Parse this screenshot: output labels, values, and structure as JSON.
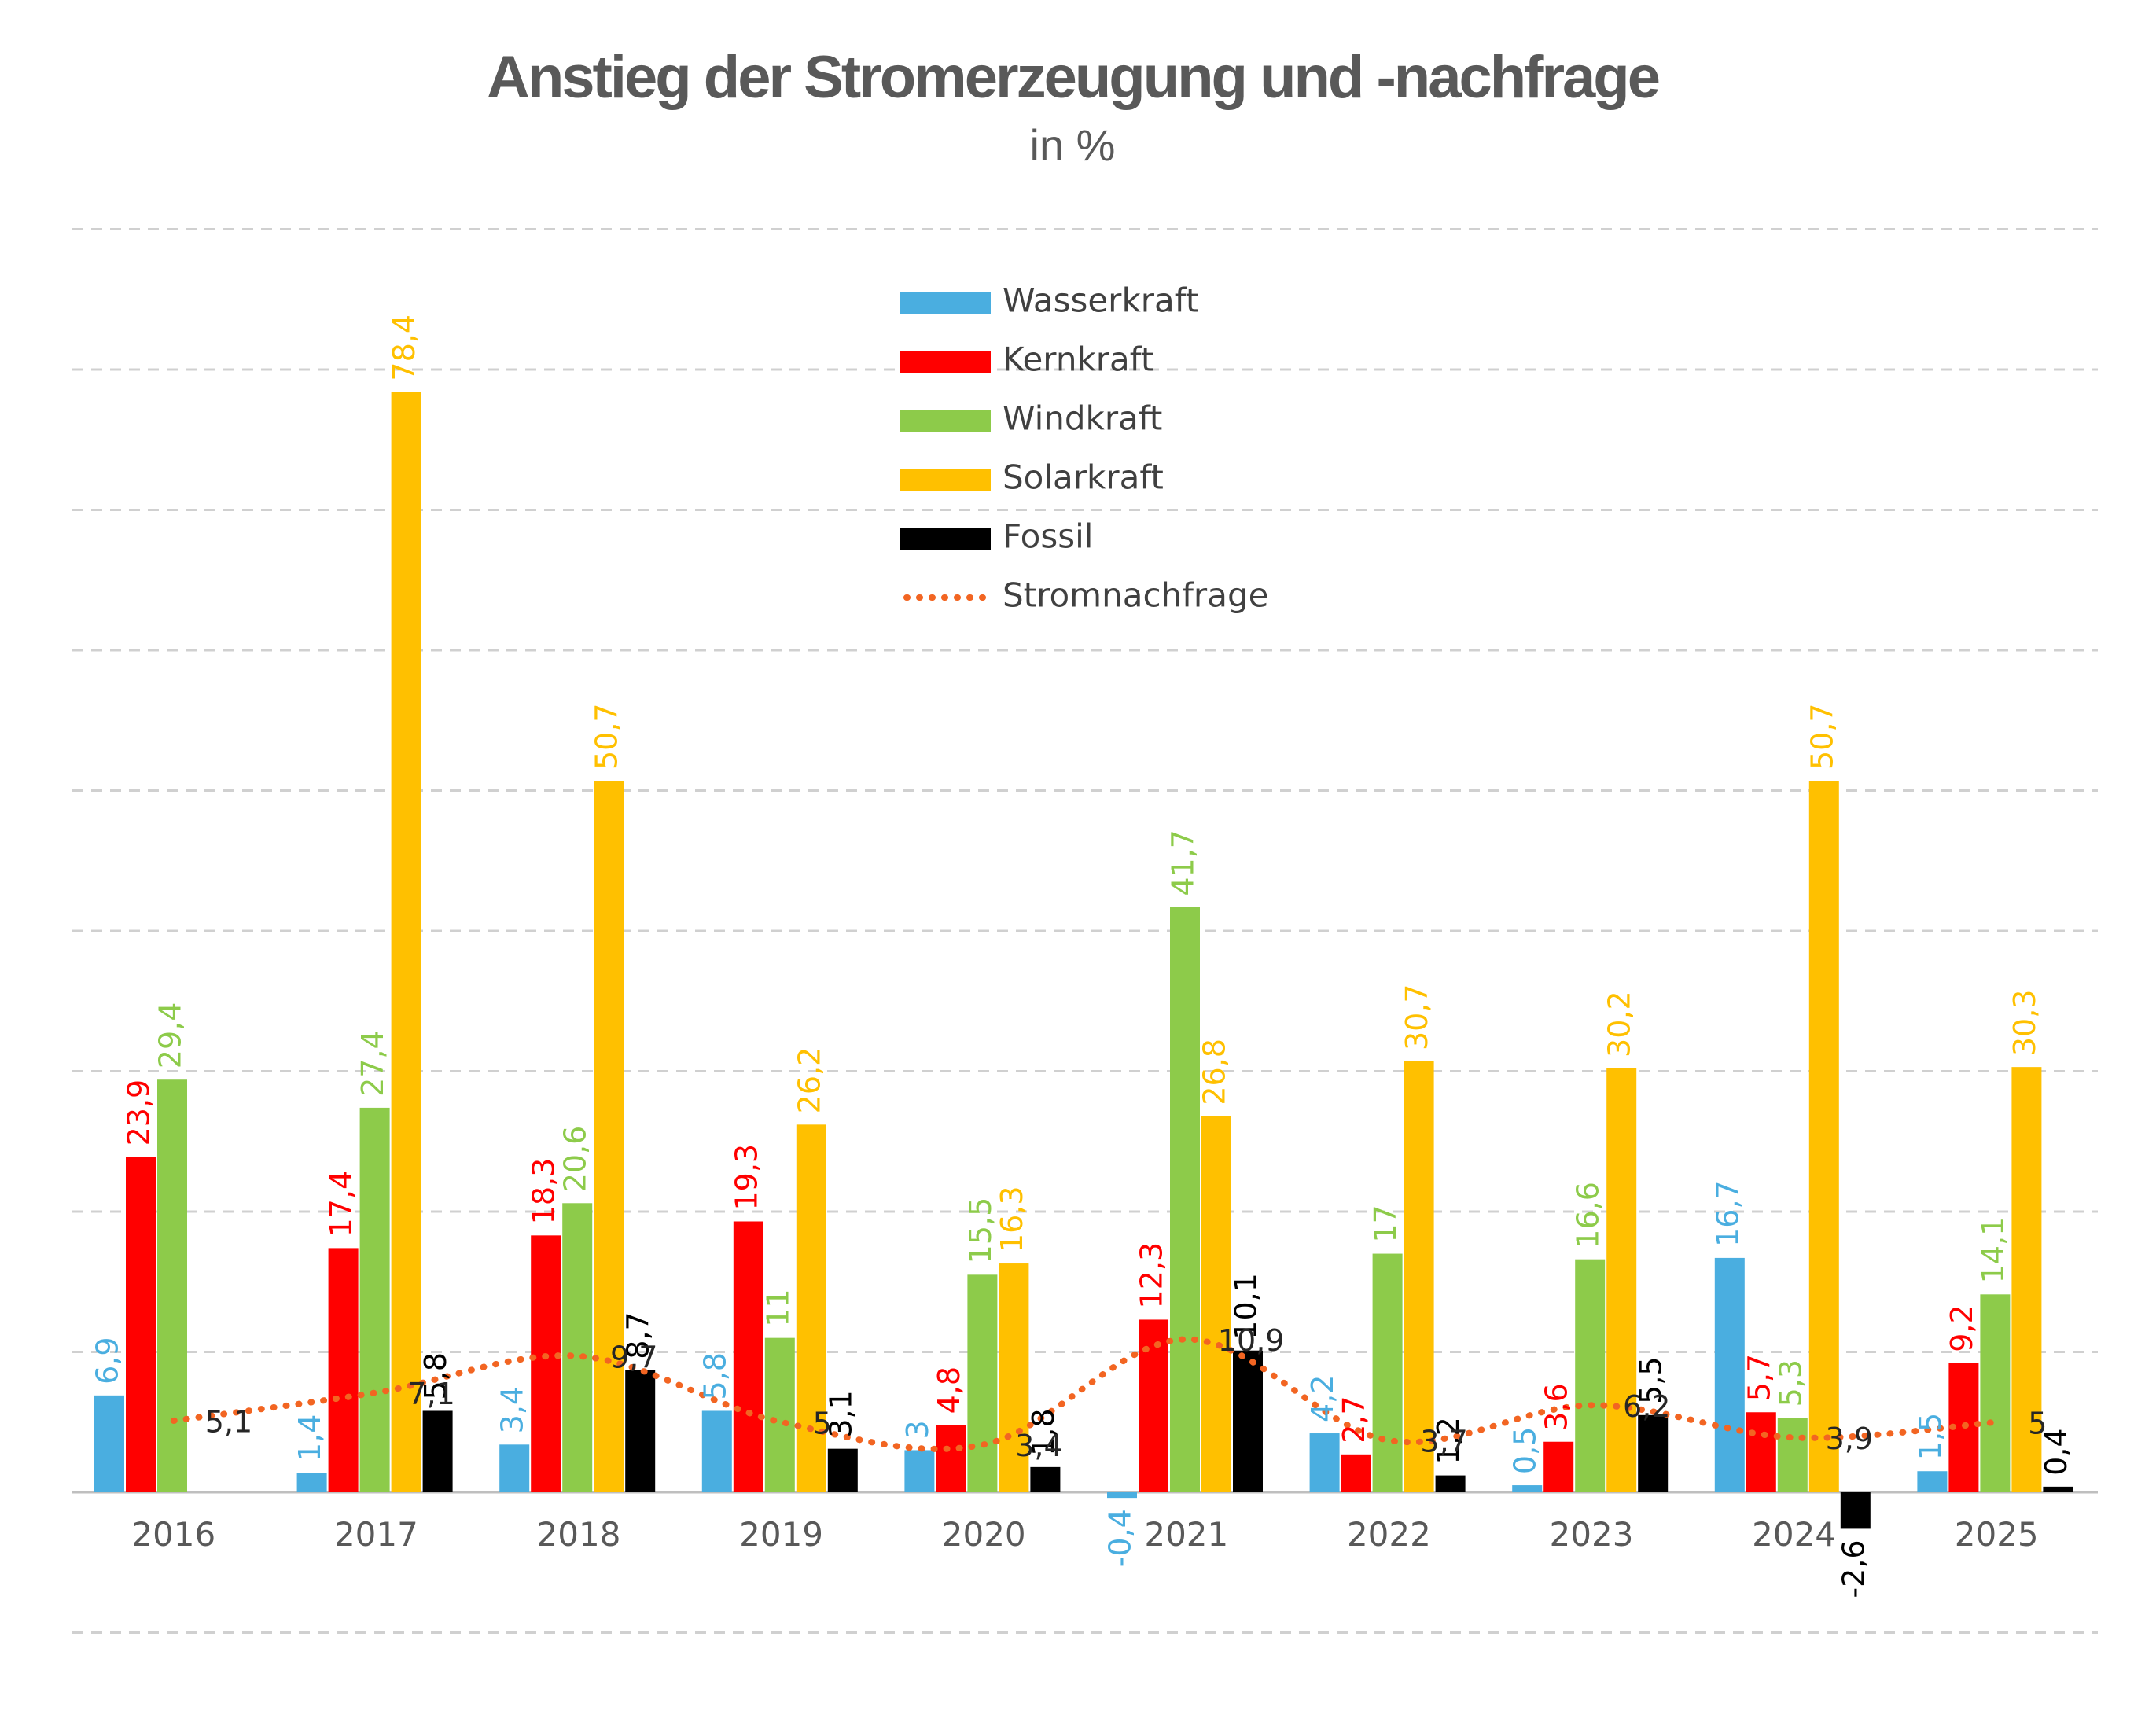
{
  "chart_data": {
    "type": "bar",
    "title": "Anstieg der Stromerzeugung und -nachfrage",
    "subtitle": "in %",
    "categories": [
      "2016",
      "2017",
      "2018",
      "2019",
      "2020",
      "2021",
      "2022",
      "2023",
      "2024",
      "2025"
    ],
    "series": [
      {
        "name": "Wasserkraft",
        "type": "bar",
        "color": "#4AAEE0",
        "values": [
          6.9,
          1.4,
          3.4,
          5.8,
          3,
          -0.4,
          4.2,
          0.5,
          16.7,
          1.5
        ],
        "labels": [
          "6,9",
          "1,4",
          "3,4",
          "5,8",
          "3",
          "-0,4",
          "4,2",
          "0,5",
          "16,7",
          "1,5"
        ]
      },
      {
        "name": "Kernkraft",
        "type": "bar",
        "color": "#FF0000",
        "values": [
          23.9,
          17.4,
          18.3,
          19.3,
          4.8,
          12.3,
          2.7,
          3.6,
          5.7,
          9.2
        ],
        "labels": [
          "23,9",
          "17,4",
          "18,3",
          "19,3",
          "4,8",
          "12,3",
          "2,7",
          "3,6",
          "5,7",
          "9,2"
        ]
      },
      {
        "name": "Windkraft",
        "type": "bar",
        "color": "#8DCB4A",
        "values": [
          29.4,
          27.4,
          20.6,
          11,
          15.5,
          41.7,
          17,
          16.6,
          5.3,
          14.1
        ],
        "labels": [
          "29,4",
          "27,4",
          "20,6",
          "11",
          "15,5",
          "41,7",
          "17",
          "16,6",
          "5,3",
          "14,1"
        ]
      },
      {
        "name": "Solarkraft",
        "type": "bar",
        "color": "#FFC000",
        "values": [
          null,
          78.4,
          50.7,
          26.2,
          16.3,
          26.8,
          30.7,
          30.2,
          50.7,
          30.3
        ],
        "labels": [
          null,
          "78,4",
          "50,7",
          "26,2",
          "16,3",
          "26,8",
          "30,7",
          "30,2",
          "50,7",
          "30,3"
        ]
      },
      {
        "name": "Fossil",
        "type": "bar",
        "color": "#000000",
        "values": [
          null,
          5.8,
          8.7,
          3.1,
          1.8,
          10.1,
          1.2,
          5.5,
          -2.6,
          0.4
        ],
        "labels": [
          null,
          "5,8",
          "8,7",
          "3,1",
          "1,8",
          "10,1",
          "1,2",
          "5,5",
          "-2,6",
          "0,4"
        ]
      },
      {
        "name": "Stromnachfrage",
        "type": "line",
        "style": "dotted",
        "color": "#F26522",
        "values": [
          5.1,
          7.1,
          9.7,
          5,
          3.4,
          10.9,
          3.7,
          6.2,
          3.9,
          5
        ],
        "labels": [
          "5,1",
          "7,1",
          "9,7",
          "5",
          "3,4",
          "10,9",
          "3,7",
          "6,2",
          "3,9",
          "5"
        ]
      }
    ],
    "ylim": [
      -10,
      90
    ],
    "xlabel": "",
    "ylabel": "",
    "grid": true,
    "legend": "top-center"
  }
}
